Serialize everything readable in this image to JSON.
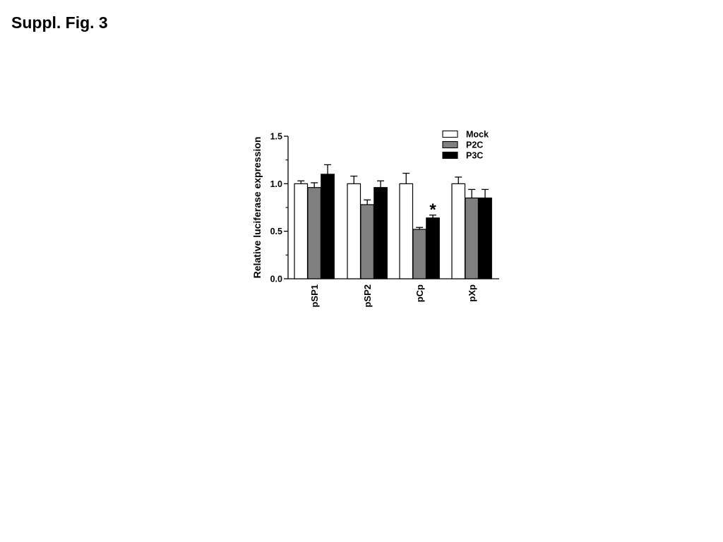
{
  "figure_title": "Suppl. Fig. 3",
  "chart_data": {
    "type": "bar",
    "ylabel": "Relative luciferase expression",
    "xlabel": "",
    "ylim": [
      0,
      1.5
    ],
    "yticks": [
      0.0,
      0.5,
      1.0,
      1.5
    ],
    "ytick_labels": [
      "0.0",
      "0.5",
      "1.0",
      "1.5"
    ],
    "minor_ytick_step": 0.25,
    "categories": [
      "pSP1",
      "pSP2",
      "pCp",
      "pXp"
    ],
    "series": [
      {
        "name": "Mock",
        "color": "#ffffff",
        "values": [
          1.0,
          1.0,
          1.0,
          1.0
        ],
        "errors": [
          0.03,
          0.08,
          0.11,
          0.07
        ]
      },
      {
        "name": "P2C",
        "color": "#808080",
        "values": [
          0.96,
          0.78,
          0.52,
          0.85
        ],
        "errors": [
          0.05,
          0.05,
          0.02,
          0.09
        ]
      },
      {
        "name": "P3C",
        "color": "#000000",
        "values": [
          1.1,
          0.96,
          0.64,
          0.85
        ],
        "errors": [
          0.1,
          0.07,
          0.03,
          0.09
        ]
      }
    ],
    "legend_position": "top-right",
    "annotations": [
      {
        "text": "*",
        "category": "pCp",
        "series": "P3C"
      }
    ]
  }
}
